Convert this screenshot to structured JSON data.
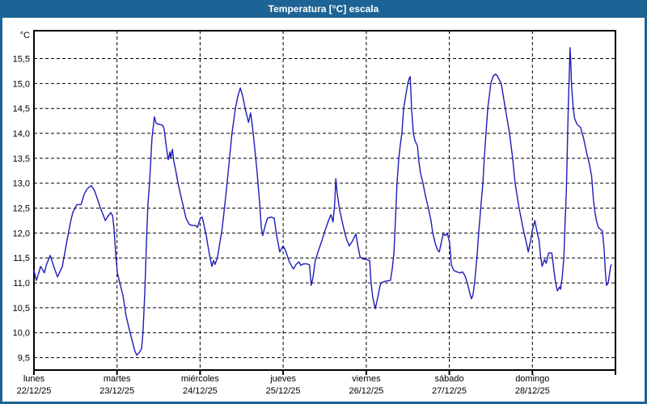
{
  "window": {
    "title": "Temperatura [°C] escala"
  },
  "colors": {
    "frame_blue": "#1d6396",
    "title_text": "#ffffff",
    "plot_background": "#ffffff",
    "grid_black": "#000000",
    "line_blue": "#1c1cb8"
  },
  "chart_data": {
    "type": "line",
    "title": "Temperatura [°C] escala",
    "ylabel": "°C",
    "ylim": [
      9.5,
      15.5
    ],
    "ytick_step": 0.5,
    "ytick_labels": [
      "9,5",
      "10,0",
      "10,5",
      "11,0",
      "11,5",
      "12,0",
      "12,5",
      "13,0",
      "13,5",
      "14,0",
      "14,5",
      "15,0",
      "15,5"
    ],
    "xlim_hours": [
      0,
      168
    ],
    "grid": "dashed-black-horizontal-and-day-boundaries",
    "legend": "none",
    "x_day_ticks": [
      {
        "name": "lunes",
        "date": "22/12/25"
      },
      {
        "name": "martes",
        "date": "23/12/25"
      },
      {
        "name": "miércoles",
        "date": "24/12/25"
      },
      {
        "name": "jueves",
        "date": "25/12/25"
      },
      {
        "name": "viernes",
        "date": "26/12/25"
      },
      {
        "name": "sábado",
        "date": "27/12/25"
      },
      {
        "name": "domingo",
        "date": "28/12/25"
      }
    ],
    "series": [
      {
        "name": "Temperatura",
        "color": "#1c1cb8",
        "points": [
          [
            0,
            11.25
          ],
          [
            0.7,
            11.05
          ],
          [
            1.4,
            11.2
          ],
          [
            1.9,
            11.33
          ],
          [
            2.6,
            11.25
          ],
          [
            3,
            11.2
          ],
          [
            3.7,
            11.38
          ],
          [
            4.7,
            11.55
          ],
          [
            5.6,
            11.35
          ],
          [
            6.8,
            11.12
          ],
          [
            8.2,
            11.33
          ],
          [
            8.9,
            11.6
          ],
          [
            9.6,
            11.87
          ],
          [
            10.5,
            12.2
          ],
          [
            11.2,
            12.41
          ],
          [
            12.4,
            12.57
          ],
          [
            13.6,
            12.57
          ],
          [
            14.5,
            12.78
          ],
          [
            15.2,
            12.87
          ],
          [
            15.9,
            12.92
          ],
          [
            16.6,
            12.95
          ],
          [
            17.5,
            12.85
          ],
          [
            18.2,
            12.71
          ],
          [
            19.2,
            12.5
          ],
          [
            19.9,
            12.38
          ],
          [
            20.6,
            12.25
          ],
          [
            21.5,
            12.35
          ],
          [
            22.2,
            12.41
          ],
          [
            22.7,
            12.35
          ],
          [
            23.1,
            12.1
          ],
          [
            23.6,
            11.6
          ],
          [
            24.1,
            11.2
          ],
          [
            24.8,
            11.0
          ],
          [
            25.7,
            10.75
          ],
          [
            26.6,
            10.35
          ],
          [
            27.6,
            10.05
          ],
          [
            28.5,
            9.8
          ],
          [
            29.2,
            9.62
          ],
          [
            29.7,
            9.55
          ],
          [
            30.4,
            9.6
          ],
          [
            31.1,
            9.68
          ],
          [
            31.5,
            10.0
          ],
          [
            32,
            10.8
          ],
          [
            32.5,
            11.8
          ],
          [
            32.9,
            12.55
          ],
          [
            33.4,
            13.0
          ],
          [
            34.1,
            13.9
          ],
          [
            34.8,
            14.33
          ],
          [
            35.3,
            14.2
          ],
          [
            36.2,
            14.18
          ],
          [
            37.2,
            14.16
          ],
          [
            37.6,
            14.09
          ],
          [
            38.3,
            13.7
          ],
          [
            38.8,
            13.47
          ],
          [
            39.3,
            13.63
          ],
          [
            39.5,
            13.5
          ],
          [
            40,
            13.68
          ],
          [
            40.4,
            13.44
          ],
          [
            40.9,
            13.28
          ],
          [
            41.6,
            13.01
          ],
          [
            42.3,
            12.79
          ],
          [
            43.2,
            12.52
          ],
          [
            43.9,
            12.3
          ],
          [
            44.9,
            12.17
          ],
          [
            45.8,
            12.15
          ],
          [
            46.7,
            12.15
          ],
          [
            47.2,
            12.11
          ],
          [
            48.1,
            12.3
          ],
          [
            48.6,
            12.32
          ],
          [
            49.3,
            12.1
          ],
          [
            49.8,
            11.95
          ],
          [
            50.2,
            11.77
          ],
          [
            50.9,
            11.5
          ],
          [
            51.4,
            11.33
          ],
          [
            51.9,
            11.45
          ],
          [
            52.3,
            11.37
          ],
          [
            53,
            11.5
          ],
          [
            53.7,
            11.8
          ],
          [
            54.4,
            12.1
          ],
          [
            55.2,
            12.6
          ],
          [
            55.8,
            13.0
          ],
          [
            56.5,
            13.5
          ],
          [
            57.2,
            14.0
          ],
          [
            58.2,
            14.5
          ],
          [
            58.9,
            14.75
          ],
          [
            59.6,
            14.91
          ],
          [
            60.3,
            14.75
          ],
          [
            61,
            14.5
          ],
          [
            62,
            14.22
          ],
          [
            62.6,
            14.41
          ],
          [
            63.1,
            14.15
          ],
          [
            63.8,
            13.7
          ],
          [
            64.5,
            13.2
          ],
          [
            65.2,
            12.6
          ],
          [
            65.7,
            12.1
          ],
          [
            66.1,
            11.95
          ],
          [
            66.8,
            12.15
          ],
          [
            67.5,
            12.3
          ],
          [
            68.5,
            12.32
          ],
          [
            69.4,
            12.3
          ],
          [
            70.1,
            11.95
          ],
          [
            70.6,
            11.77
          ],
          [
            71,
            11.62
          ],
          [
            71.5,
            11.68
          ],
          [
            72,
            11.74
          ],
          [
            72.7,
            11.65
          ],
          [
            73.4,
            11.5
          ],
          [
            73.8,
            11.42
          ],
          [
            74.5,
            11.33
          ],
          [
            75,
            11.28
          ],
          [
            75.7,
            11.37
          ],
          [
            76.6,
            11.42
          ],
          [
            77.1,
            11.35
          ],
          [
            77.8,
            11.38
          ],
          [
            78.9,
            11.38
          ],
          [
            79.6,
            11.36
          ],
          [
            80.1,
            10.95
          ],
          [
            80.6,
            11.1
          ],
          [
            81.3,
            11.45
          ],
          [
            82.2,
            11.65
          ],
          [
            83.2,
            11.85
          ],
          [
            84.1,
            12.05
          ],
          [
            85.1,
            12.25
          ],
          [
            85.8,
            12.37
          ],
          [
            86.4,
            12.22
          ],
          [
            86.9,
            12.6
          ],
          [
            87.2,
            13.09
          ],
          [
            87.6,
            12.8
          ],
          [
            88.3,
            12.47
          ],
          [
            89.3,
            12.15
          ],
          [
            90.2,
            11.9
          ],
          [
            91.1,
            11.74
          ],
          [
            92.1,
            11.85
          ],
          [
            93,
            11.98
          ],
          [
            93.7,
            11.7
          ],
          [
            94.2,
            11.52
          ],
          [
            95.1,
            11.48
          ],
          [
            96,
            11.47
          ],
          [
            97,
            11.45
          ],
          [
            97.4,
            11.0
          ],
          [
            97.9,
            10.7
          ],
          [
            98.6,
            10.48
          ],
          [
            99.3,
            10.7
          ],
          [
            100,
            10.95
          ],
          [
            100.5,
            11.01
          ],
          [
            101.4,
            11.03
          ],
          [
            102.3,
            11.04
          ],
          [
            103,
            11.05
          ],
          [
            103.5,
            11.28
          ],
          [
            104,
            11.6
          ],
          [
            104.4,
            12.2
          ],
          [
            104.9,
            13.0
          ],
          [
            105.4,
            13.5
          ],
          [
            105.8,
            13.75
          ],
          [
            106.3,
            14.0
          ],
          [
            106.8,
            14.5
          ],
          [
            107.5,
            14.8
          ],
          [
            108,
            15.0
          ],
          [
            108.4,
            15.1
          ],
          [
            108.7,
            15.14
          ],
          [
            109.1,
            14.5
          ],
          [
            109.6,
            14.0
          ],
          [
            110.1,
            13.85
          ],
          [
            110.8,
            13.75
          ],
          [
            111.2,
            13.44
          ],
          [
            111.7,
            13.2
          ],
          [
            112.4,
            13.0
          ],
          [
            113.1,
            12.75
          ],
          [
            114,
            12.49
          ],
          [
            114.7,
            12.25
          ],
          [
            115.2,
            12.01
          ],
          [
            115.9,
            11.8
          ],
          [
            116.6,
            11.66
          ],
          [
            117.1,
            11.62
          ],
          [
            117.8,
            11.85
          ],
          [
            118.2,
            11.98
          ],
          [
            118.9,
            11.95
          ],
          [
            119.4,
            12.0
          ],
          [
            120.1,
            11.8
          ],
          [
            120.6,
            11.36
          ],
          [
            121.3,
            11.25
          ],
          [
            122.2,
            11.22
          ],
          [
            123.1,
            11.2
          ],
          [
            123.8,
            11.22
          ],
          [
            124.5,
            11.15
          ],
          [
            125.2,
            11.0
          ],
          [
            125.9,
            10.8
          ],
          [
            126.4,
            10.68
          ],
          [
            126.8,
            10.75
          ],
          [
            127.3,
            11.0
          ],
          [
            128,
            11.53
          ],
          [
            128.5,
            12.0
          ],
          [
            129.2,
            12.6
          ],
          [
            129.7,
            13.0
          ],
          [
            130.1,
            13.5
          ],
          [
            130.6,
            14.0
          ],
          [
            131.1,
            14.5
          ],
          [
            132,
            15.0
          ],
          [
            132.7,
            15.15
          ],
          [
            133.4,
            15.19
          ],
          [
            133.9,
            15.15
          ],
          [
            134.6,
            15.05
          ],
          [
            135,
            15.0
          ],
          [
            136.2,
            14.49
          ],
          [
            137.4,
            14.0
          ],
          [
            138.3,
            13.5
          ],
          [
            139,
            13.0
          ],
          [
            140.2,
            12.49
          ],
          [
            141.4,
            12.06
          ],
          [
            142.1,
            11.85
          ],
          [
            142.8,
            11.62
          ],
          [
            143.5,
            11.85
          ],
          [
            144,
            12.06
          ],
          [
            144.7,
            12.25
          ],
          [
            145.4,
            12.0
          ],
          [
            145.9,
            11.87
          ],
          [
            146.3,
            11.58
          ],
          [
            146.8,
            11.33
          ],
          [
            147.5,
            11.47
          ],
          [
            148,
            11.39
          ],
          [
            148.7,
            11.6
          ],
          [
            149.6,
            11.6
          ],
          [
            150.3,
            11.22
          ],
          [
            150.7,
            11.0
          ],
          [
            151.2,
            10.84
          ],
          [
            151.9,
            10.92
          ],
          [
            152.1,
            10.87
          ],
          [
            152.6,
            11.1
          ],
          [
            153.1,
            11.5
          ],
          [
            153.5,
            12.3
          ],
          [
            153.8,
            12.8
          ],
          [
            154,
            13.4
          ],
          [
            154.2,
            14.0
          ],
          [
            154.4,
            14.6
          ],
          [
            154.7,
            15.3
          ],
          [
            154.9,
            15.72
          ],
          [
            155.1,
            15.4
          ],
          [
            155.3,
            15.0
          ],
          [
            155.8,
            14.5
          ],
          [
            156.2,
            14.3
          ],
          [
            156.9,
            14.18
          ],
          [
            157.9,
            14.12
          ],
          [
            158.8,
            13.9
          ],
          [
            159.7,
            13.6
          ],
          [
            160.4,
            13.4
          ],
          [
            161.1,
            13.15
          ],
          [
            161.6,
            12.7
          ],
          [
            162,
            12.45
          ],
          [
            162.5,
            12.25
          ],
          [
            163,
            12.12
          ],
          [
            163.7,
            12.07
          ],
          [
            164.2,
            12.05
          ],
          [
            164.7,
            11.7
          ],
          [
            165.1,
            11.2
          ],
          [
            165.4,
            10.95
          ],
          [
            165.9,
            11.0
          ],
          [
            166.6,
            11.33
          ],
          [
            166.8,
            11.36
          ]
        ]
      }
    ]
  }
}
